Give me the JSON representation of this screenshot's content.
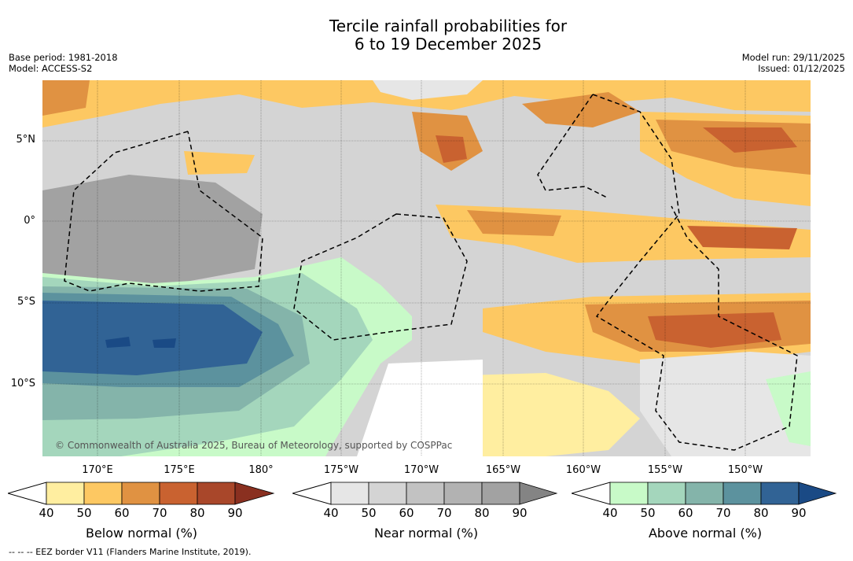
{
  "header": {
    "title_line1": "Tercile rainfall probabilities for",
    "title_line2": "6 to 19 December 2025",
    "base_period": "Base period: 1981-2018",
    "model": "Model: ACCESS-S2",
    "model_run": "Model run: 29/11/2025",
    "issued": "Issued: 01/12/2025"
  },
  "axes": {
    "lat_labels": [
      "5°N",
      "0°",
      "5°S",
      "10°S"
    ],
    "lon_labels": [
      "170°E",
      "175°E",
      "180°",
      "175°W",
      "170°W",
      "165°W",
      "160°W",
      "155°W",
      "150°W"
    ]
  },
  "copyright": "© Commonwealth of Australia 2025, Bureau of Meteorology, supported by COSPPac",
  "colorbars": [
    {
      "title": "Below normal (%)",
      "ticks": [
        "40",
        "50",
        "60",
        "70",
        "80",
        "90"
      ],
      "colors": [
        "#ffeea0",
        "#fdc862",
        "#e09242",
        "#c96230",
        "#a9472a",
        "#8a3020"
      ]
    },
    {
      "title": "Near normal (%)",
      "ticks": [
        "40",
        "50",
        "60",
        "70",
        "80",
        "90"
      ],
      "colors": [
        "#e6e6e6",
        "#d4d4d4",
        "#c2c2c2",
        "#b2b2b2",
        "#a2a2a2",
        "#848484"
      ]
    },
    {
      "title": "Above normal (%)",
      "ticks": [
        "40",
        "50",
        "60",
        "70",
        "80",
        "90"
      ],
      "colors": [
        "#c8fac8",
        "#a4d6bc",
        "#84b4aa",
        "#5c929e",
        "#316395",
        "#1a4a85"
      ]
    }
  ],
  "footer": "--  --  -- EEZ border V11 (Flanders Marine Institute, 2019)."
}
